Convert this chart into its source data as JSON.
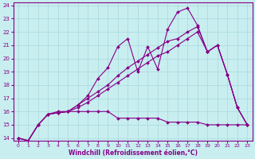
{
  "xlabel": "Windchill (Refroidissement éolien,°C)",
  "bg_color": "#c8eef0",
  "grid_color": "#a8d8dc",
  "line_color": "#880088",
  "xlim": [
    -0.5,
    23.5
  ],
  "ylim": [
    13.8,
    24.2
  ],
  "xticks": [
    0,
    1,
    2,
    3,
    4,
    5,
    6,
    7,
    8,
    9,
    10,
    11,
    12,
    13,
    14,
    15,
    16,
    17,
    18,
    19,
    20,
    21,
    22,
    23
  ],
  "yticks": [
    14,
    15,
    16,
    17,
    18,
    19,
    20,
    21,
    22,
    23,
    24
  ],
  "line1_x": [
    0,
    1,
    2,
    3,
    4,
    5,
    6,
    7,
    8,
    9,
    10,
    11,
    12,
    13,
    14,
    15,
    16,
    17,
    18,
    19,
    20,
    21,
    22,
    23
  ],
  "line1_y": [
    14.0,
    13.8,
    15.0,
    15.8,
    16.0,
    16.0,
    16.0,
    16.0,
    16.0,
    16.0,
    15.5,
    15.5,
    15.5,
    15.5,
    15.5,
    15.2,
    15.2,
    15.2,
    15.2,
    15.0,
    15.0,
    15.0,
    15.0,
    15.0
  ],
  "line2_x": [
    0,
    1,
    2,
    3,
    4,
    5,
    6,
    7,
    8,
    9,
    10,
    11,
    12,
    13,
    14,
    15,
    16,
    17,
    18,
    19,
    20,
    21,
    22,
    23
  ],
  "line2_y": [
    14.0,
    13.8,
    15.0,
    15.8,
    15.9,
    16.0,
    16.5,
    17.2,
    18.5,
    19.3,
    20.9,
    21.5,
    19.0,
    20.9,
    19.2,
    22.2,
    23.5,
    23.8,
    22.5,
    20.5,
    21.0,
    18.8,
    16.3,
    15.0
  ],
  "line3_x": [
    0,
    1,
    2,
    3,
    4,
    5,
    6,
    7,
    8,
    9,
    10,
    11,
    12,
    13,
    14,
    15,
    16,
    17,
    18,
    19,
    20,
    21,
    22,
    23
  ],
  "line3_y": [
    14.0,
    13.8,
    15.0,
    15.8,
    15.9,
    16.0,
    16.5,
    17.0,
    17.5,
    18.0,
    18.7,
    19.3,
    19.8,
    20.3,
    20.8,
    21.3,
    21.5,
    22.0,
    22.4,
    20.5,
    21.0,
    18.8,
    16.3,
    15.0
  ],
  "line4_x": [
    0,
    1,
    2,
    3,
    4,
    5,
    6,
    7,
    8,
    9,
    10,
    11,
    12,
    13,
    14,
    15,
    16,
    17,
    18,
    19,
    20,
    21,
    22,
    23
  ],
  "line4_y": [
    14.0,
    13.8,
    15.0,
    15.8,
    15.9,
    16.0,
    16.3,
    16.7,
    17.2,
    17.7,
    18.2,
    18.7,
    19.2,
    19.7,
    20.2,
    20.5,
    21.0,
    21.5,
    22.0,
    20.5,
    21.0,
    18.8,
    16.3,
    15.0
  ]
}
